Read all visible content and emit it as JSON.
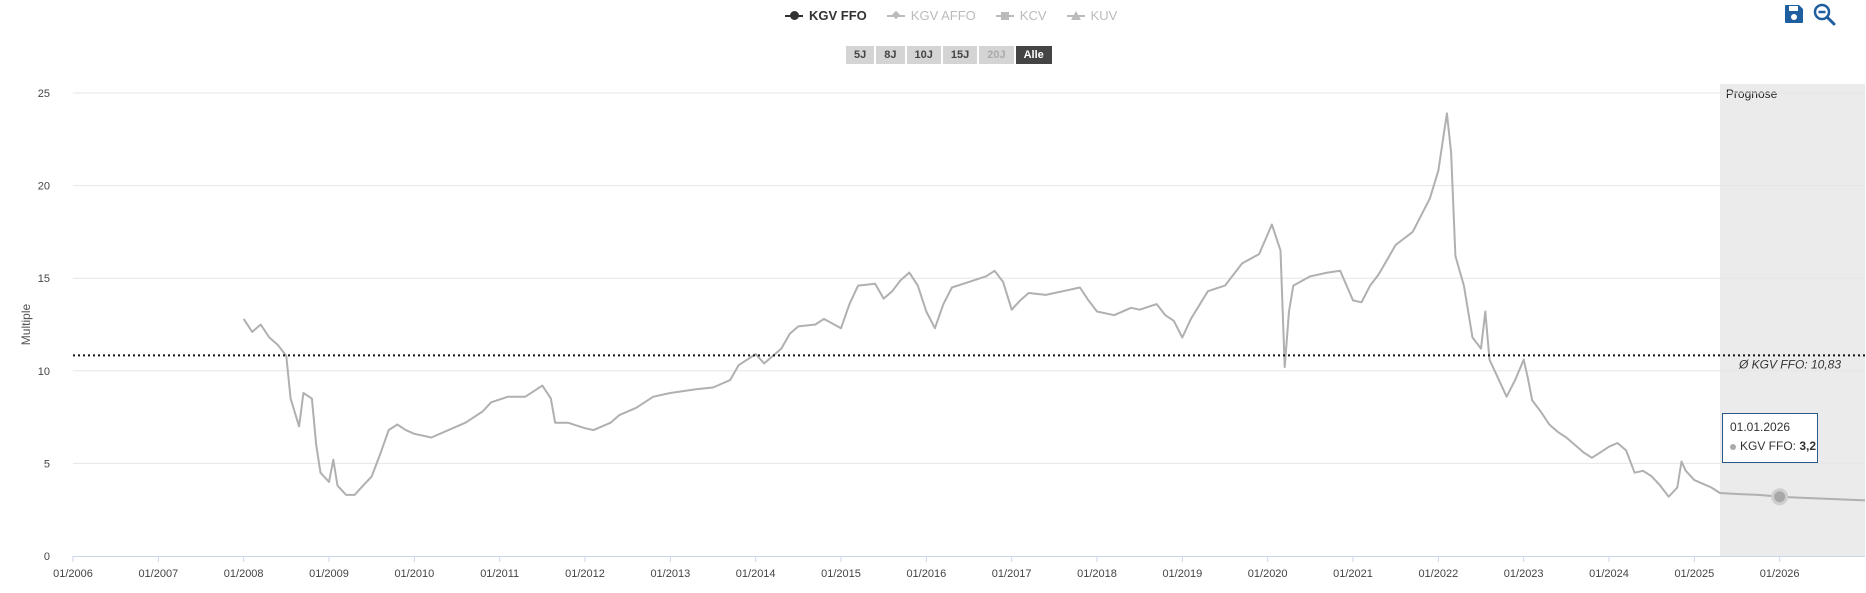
{
  "legend": [
    {
      "label": "KGV FFO",
      "symbol": "circle",
      "active": true
    },
    {
      "label": "KGV AFFO",
      "symbol": "diamond",
      "active": false
    },
    {
      "label": "KCV",
      "symbol": "square",
      "active": false
    },
    {
      "label": "KUV",
      "symbol": "triangle",
      "active": false
    }
  ],
  "range_buttons": [
    {
      "label": "5J",
      "state": "normal"
    },
    {
      "label": "8J",
      "state": "normal"
    },
    {
      "label": "10J",
      "state": "normal"
    },
    {
      "label": "15J",
      "state": "normal"
    },
    {
      "label": "20J",
      "state": "disabled"
    },
    {
      "label": "Alle",
      "state": "active"
    }
  ],
  "icons": {
    "save": "save-icon",
    "zoom_out": "zoom-out-icon"
  },
  "tooltip": {
    "date": "01.01.2026",
    "series": "KGV FFO",
    "value": "3,2"
  },
  "chart_data": {
    "type": "line",
    "ylabel": "Multiple",
    "ylim": [
      0,
      25
    ],
    "yticks": [
      0,
      5,
      10,
      15,
      20,
      25
    ],
    "xlim": [
      2006.0,
      2027.0
    ],
    "xticks": [
      "01/2006",
      "01/2007",
      "01/2008",
      "01/2009",
      "01/2010",
      "01/2011",
      "01/2012",
      "01/2013",
      "01/2014",
      "01/2015",
      "01/2016",
      "01/2017",
      "01/2018",
      "01/2019",
      "01/2020",
      "01/2021",
      "01/2022",
      "01/2023",
      "01/2024",
      "01/2025",
      "01/2026"
    ],
    "grid": "horizontal",
    "color": "#b0b0b0",
    "average": {
      "value": 10.83,
      "label": "Ø KGV FFO: 10,83"
    },
    "forecast": {
      "label": "Prognose",
      "start": 2025.3
    },
    "highlight": {
      "x": 2026.0,
      "y": 3.2
    },
    "series": [
      {
        "name": "KGV FFO",
        "points": [
          [
            2008.0,
            12.8
          ],
          [
            2008.1,
            12.1
          ],
          [
            2008.2,
            12.5
          ],
          [
            2008.3,
            11.8
          ],
          [
            2008.4,
            11.4
          ],
          [
            2008.5,
            10.8
          ],
          [
            2008.55,
            8.5
          ],
          [
            2008.65,
            7.0
          ],
          [
            2008.7,
            8.8
          ],
          [
            2008.8,
            8.5
          ],
          [
            2008.85,
            6.0
          ],
          [
            2008.9,
            4.5
          ],
          [
            2009.0,
            4.0
          ],
          [
            2009.05,
            5.2
          ],
          [
            2009.1,
            3.8
          ],
          [
            2009.2,
            3.3
          ],
          [
            2009.3,
            3.3
          ],
          [
            2009.4,
            3.8
          ],
          [
            2009.5,
            4.3
          ],
          [
            2009.6,
            5.5
          ],
          [
            2009.7,
            6.8
          ],
          [
            2009.8,
            7.1
          ],
          [
            2009.9,
            6.8
          ],
          [
            2010.0,
            6.6
          ],
          [
            2010.2,
            6.4
          ],
          [
            2010.4,
            6.8
          ],
          [
            2010.6,
            7.2
          ],
          [
            2010.8,
            7.8
          ],
          [
            2010.9,
            8.3
          ],
          [
            2011.1,
            8.6
          ],
          [
            2011.3,
            8.6
          ],
          [
            2011.4,
            8.9
          ],
          [
            2011.5,
            9.2
          ],
          [
            2011.6,
            8.5
          ],
          [
            2011.65,
            7.2
          ],
          [
            2011.8,
            7.2
          ],
          [
            2012.0,
            6.9
          ],
          [
            2012.1,
            6.8
          ],
          [
            2012.3,
            7.2
          ],
          [
            2012.4,
            7.6
          ],
          [
            2012.6,
            8.0
          ],
          [
            2012.8,
            8.6
          ],
          [
            2013.0,
            8.8
          ],
          [
            2013.3,
            9.0
          ],
          [
            2013.5,
            9.1
          ],
          [
            2013.7,
            9.5
          ],
          [
            2013.8,
            10.3
          ],
          [
            2014.0,
            10.9
          ],
          [
            2014.1,
            10.4
          ],
          [
            2014.3,
            11.2
          ],
          [
            2014.4,
            12.0
          ],
          [
            2014.5,
            12.4
          ],
          [
            2014.7,
            12.5
          ],
          [
            2014.8,
            12.8
          ],
          [
            2015.0,
            12.3
          ],
          [
            2015.1,
            13.6
          ],
          [
            2015.2,
            14.6
          ],
          [
            2015.4,
            14.7
          ],
          [
            2015.5,
            13.9
          ],
          [
            2015.6,
            14.3
          ],
          [
            2015.7,
            14.9
          ],
          [
            2015.8,
            15.3
          ],
          [
            2015.9,
            14.6
          ],
          [
            2016.0,
            13.2
          ],
          [
            2016.1,
            12.3
          ],
          [
            2016.2,
            13.6
          ],
          [
            2016.3,
            14.5
          ],
          [
            2016.5,
            14.8
          ],
          [
            2016.7,
            15.1
          ],
          [
            2016.8,
            15.4
          ],
          [
            2016.9,
            14.8
          ],
          [
            2017.0,
            13.3
          ],
          [
            2017.1,
            13.8
          ],
          [
            2017.2,
            14.2
          ],
          [
            2017.4,
            14.1
          ],
          [
            2017.6,
            14.3
          ],
          [
            2017.8,
            14.5
          ],
          [
            2017.9,
            13.8
          ],
          [
            2018.0,
            13.2
          ],
          [
            2018.2,
            13.0
          ],
          [
            2018.4,
            13.4
          ],
          [
            2018.5,
            13.3
          ],
          [
            2018.7,
            13.6
          ],
          [
            2018.8,
            13.0
          ],
          [
            2018.9,
            12.7
          ],
          [
            2019.0,
            11.8
          ],
          [
            2019.1,
            12.8
          ],
          [
            2019.3,
            14.3
          ],
          [
            2019.5,
            14.6
          ],
          [
            2019.7,
            15.8
          ],
          [
            2019.9,
            16.3
          ],
          [
            2020.05,
            17.9
          ],
          [
            2020.15,
            16.5
          ],
          [
            2020.2,
            10.2
          ],
          [
            2020.25,
            13.2
          ],
          [
            2020.3,
            14.6
          ],
          [
            2020.5,
            15.1
          ],
          [
            2020.7,
            15.3
          ],
          [
            2020.85,
            15.4
          ],
          [
            2021.0,
            13.8
          ],
          [
            2021.1,
            13.7
          ],
          [
            2021.2,
            14.6
          ],
          [
            2021.3,
            15.2
          ],
          [
            2021.5,
            16.8
          ],
          [
            2021.7,
            17.5
          ],
          [
            2021.9,
            19.3
          ],
          [
            2022.0,
            20.8
          ],
          [
            2022.1,
            23.9
          ],
          [
            2022.15,
            21.8
          ],
          [
            2022.2,
            16.2
          ],
          [
            2022.3,
            14.6
          ],
          [
            2022.4,
            11.8
          ],
          [
            2022.5,
            11.2
          ],
          [
            2022.55,
            13.2
          ],
          [
            2022.6,
            10.6
          ],
          [
            2022.7,
            9.6
          ],
          [
            2022.8,
            8.6
          ],
          [
            2022.9,
            9.5
          ],
          [
            2023.0,
            10.6
          ],
          [
            2023.05,
            9.6
          ],
          [
            2023.1,
            8.4
          ],
          [
            2023.2,
            7.8
          ],
          [
            2023.3,
            7.1
          ],
          [
            2023.4,
            6.7
          ],
          [
            2023.5,
            6.4
          ],
          [
            2023.6,
            6.0
          ],
          [
            2023.7,
            5.6
          ],
          [
            2023.8,
            5.3
          ],
          [
            2023.9,
            5.6
          ],
          [
            2024.0,
            5.9
          ],
          [
            2024.1,
            6.1
          ],
          [
            2024.2,
            5.7
          ],
          [
            2024.3,
            4.5
          ],
          [
            2024.4,
            4.6
          ],
          [
            2024.5,
            4.3
          ],
          [
            2024.6,
            3.8
          ],
          [
            2024.7,
            3.2
          ],
          [
            2024.8,
            3.7
          ],
          [
            2024.85,
            5.1
          ],
          [
            2024.9,
            4.6
          ],
          [
            2025.0,
            4.1
          ],
          [
            2025.1,
            3.9
          ],
          [
            2025.2,
            3.7
          ],
          [
            2025.3,
            3.4
          ],
          [
            2025.5,
            3.35
          ],
          [
            2025.75,
            3.3
          ],
          [
            2026.0,
            3.2
          ],
          [
            2026.25,
            3.15
          ],
          [
            2026.5,
            3.1
          ],
          [
            2026.75,
            3.05
          ],
          [
            2027.0,
            3.0
          ]
        ]
      }
    ]
  }
}
